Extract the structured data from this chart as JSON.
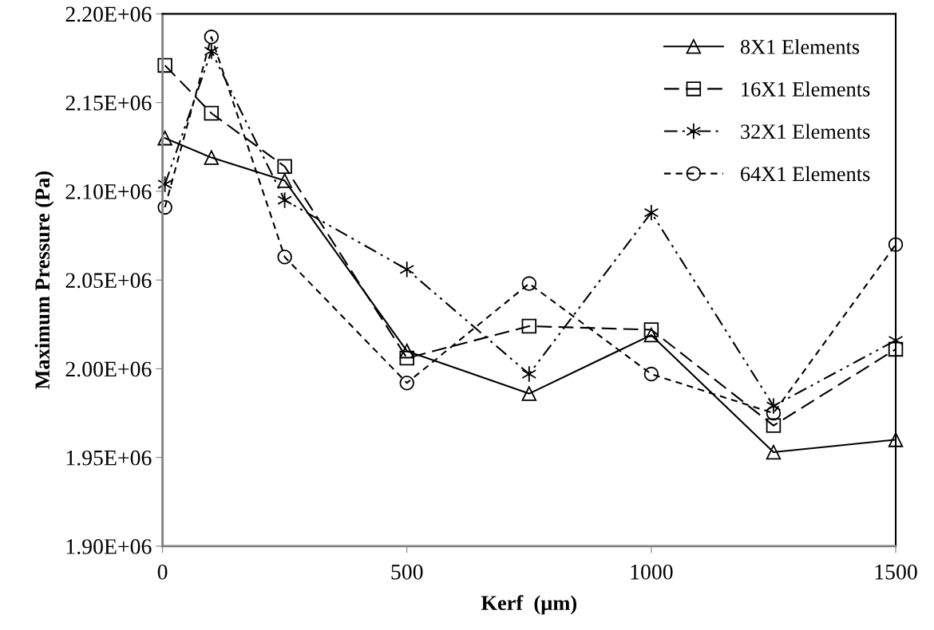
{
  "chart_data": {
    "type": "line",
    "xlabel": "Kerf  (µm)",
    "ylabel": "Maximum Pressure (Pa)",
    "x": [
      5,
      100,
      250,
      500,
      750,
      1000,
      1250,
      1500
    ],
    "xlim": [
      0,
      1500
    ],
    "xticks": [
      0,
      500,
      1000,
      1500
    ],
    "ylim": [
      1900000,
      2200000
    ],
    "yticks": [
      {
        "value": 1900000,
        "label": "1.90E+06"
      },
      {
        "value": 1950000,
        "label": "1.95E+06"
      },
      {
        "value": 2000000,
        "label": "2.00E+06"
      },
      {
        "value": 2050000,
        "label": "2.05E+06"
      },
      {
        "value": 2100000,
        "label": "2.10E+06"
      },
      {
        "value": 2150000,
        "label": "2.15E+06"
      },
      {
        "value": 2200000,
        "label": "2.20E+06"
      }
    ],
    "grid": false,
    "legend": "top right",
    "series": [
      {
        "name": "8X1 Elements",
        "color": "#000000",
        "marker": "triangle",
        "line_style": "solid",
        "values": [
          2130000,
          2119000,
          2106000,
          2010000,
          1986000,
          2019000,
          1953000,
          1960000
        ]
      },
      {
        "name": "16X1 Elements",
        "color": "#000000",
        "marker": "square",
        "line_style": "long_dashed",
        "values": [
          2171000,
          2144000,
          2114000,
          2006000,
          2024000,
          2022000,
          1968000,
          2011000
        ]
      },
      {
        "name": "32X1 Elements",
        "color": "#000000",
        "marker": "cross",
        "line_style": "dash_dot_dot",
        "values": [
          2104000,
          2179000,
          2095000,
          2056000,
          1997000,
          2088000,
          1979000,
          2016000
        ]
      },
      {
        "name": "64X1 Elements",
        "color": "#000000",
        "marker": "circle",
        "line_style": "dashed",
        "values": [
          2091000,
          2187000,
          2063000,
          1992000,
          2048000,
          1997000,
          1975000,
          2070000
        ]
      }
    ]
  }
}
